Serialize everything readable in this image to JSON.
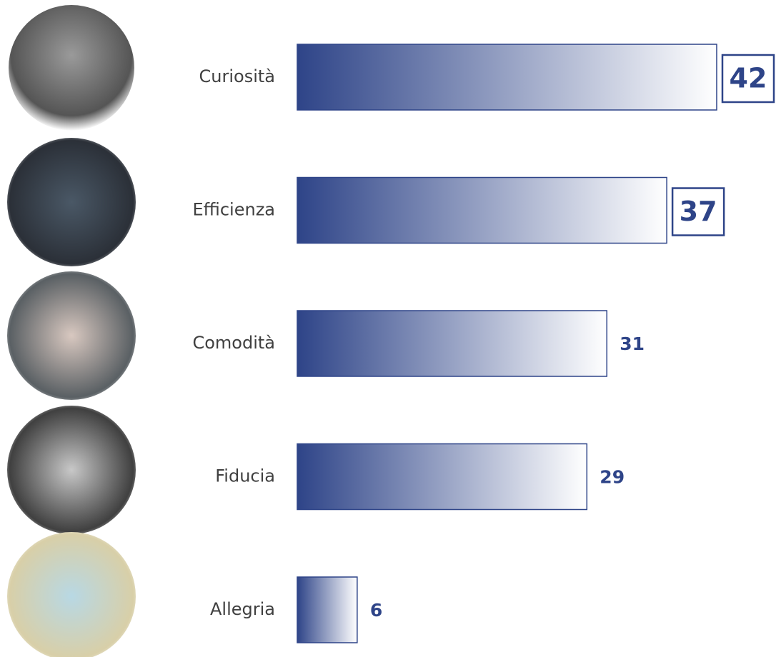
{
  "chart_data": {
    "type": "bar",
    "orientation": "horizontal",
    "categories": [
      "Curiosità",
      "Efficienza",
      "Comodità",
      "Fiducia",
      "Allegria"
    ],
    "values": [
      42,
      37,
      31,
      29,
      6
    ],
    "color": "#2e4488"
  }
}
